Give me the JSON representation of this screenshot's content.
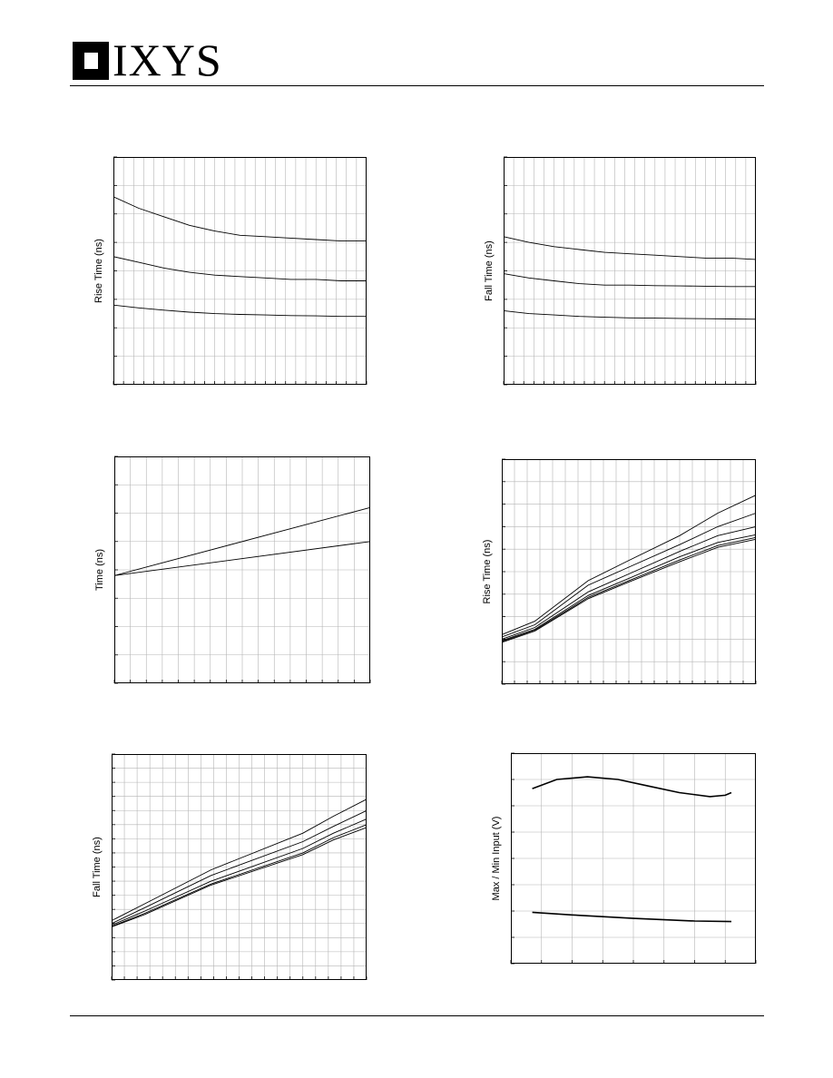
{
  "header": {
    "brand": "IXYS"
  },
  "chart_data": [
    {
      "type": "line",
      "ylabel": "Rise Time (ns)",
      "xlim": [
        0,
        10
      ],
      "ylim": [
        0,
        8
      ],
      "grid": {
        "x": 25,
        "y": 8
      },
      "series": [
        {
          "x": [
            0,
            1,
            2,
            3,
            4,
            5,
            6,
            7,
            8,
            9,
            10
          ],
          "values": [
            6.6,
            6.2,
            5.9,
            5.6,
            5.4,
            5.25,
            5.2,
            5.15,
            5.1,
            5.05,
            5.05
          ]
        },
        {
          "x": [
            0,
            1,
            2,
            3,
            4,
            5,
            6,
            7,
            8,
            9,
            10
          ],
          "values": [
            4.5,
            4.3,
            4.1,
            3.95,
            3.85,
            3.8,
            3.75,
            3.7,
            3.7,
            3.65,
            3.65
          ]
        },
        {
          "x": [
            0,
            1,
            2,
            3,
            4,
            5,
            6,
            7,
            8,
            9,
            10
          ],
          "values": [
            2.8,
            2.7,
            2.62,
            2.55,
            2.5,
            2.47,
            2.45,
            2.43,
            2.42,
            2.4,
            2.4
          ]
        }
      ]
    },
    {
      "type": "line",
      "ylabel": "Fall Time (ns)",
      "xlim": [
        0,
        10
      ],
      "ylim": [
        0,
        8
      ],
      "grid": {
        "x": 25,
        "y": 8
      },
      "series": [
        {
          "x": [
            0,
            1,
            2,
            3,
            4,
            5,
            6,
            7,
            8,
            9,
            10
          ],
          "values": [
            5.2,
            5.0,
            4.85,
            4.75,
            4.65,
            4.6,
            4.55,
            4.5,
            4.45,
            4.45,
            4.4
          ]
        },
        {
          "x": [
            0,
            1,
            2,
            3,
            4,
            5,
            6,
            7,
            8,
            9,
            10
          ],
          "values": [
            3.9,
            3.75,
            3.65,
            3.55,
            3.5,
            3.5,
            3.48,
            3.47,
            3.46,
            3.45,
            3.45
          ]
        },
        {
          "x": [
            0,
            1,
            2,
            3,
            4,
            5,
            6,
            7,
            8,
            9,
            10
          ],
          "values": [
            2.6,
            2.5,
            2.45,
            2.4,
            2.37,
            2.35,
            2.34,
            2.33,
            2.32,
            2.31,
            2.3
          ]
        }
      ]
    },
    {
      "type": "line",
      "ylabel": "Time (ns)",
      "xlim": [
        0,
        8
      ],
      "ylim": [
        0,
        8
      ],
      "grid": {
        "x": 16,
        "y": 8
      },
      "series": [
        {
          "x": [
            0,
            8
          ],
          "values": [
            3.8,
            6.2
          ]
        },
        {
          "x": [
            0,
            8
          ],
          "values": [
            3.8,
            5.0
          ]
        }
      ]
    },
    {
      "type": "line",
      "ylabel": "Rise Time (ns)",
      "xlim": [
        0,
        10
      ],
      "ylim": [
        0,
        5
      ],
      "grid": {
        "x": 20,
        "y": 10
      },
      "series": [
        {
          "x": [
            0,
            1.3,
            3.4,
            5,
            7,
            8.5,
            10
          ],
          "values": [
            1.1,
            1.4,
            2.3,
            2.75,
            3.3,
            3.8,
            4.2
          ]
        },
        {
          "x": [
            0,
            1.3,
            3.4,
            5,
            7,
            8.5,
            10
          ],
          "values": [
            1.05,
            1.32,
            2.2,
            2.6,
            3.1,
            3.5,
            3.8
          ]
        },
        {
          "x": [
            0,
            1.3,
            3.4,
            5,
            7,
            8.5,
            10
          ],
          "values": [
            1.0,
            1.26,
            2.05,
            2.45,
            2.95,
            3.3,
            3.5
          ]
        },
        {
          "x": [
            0,
            1.3,
            3.4,
            5,
            7,
            8.5,
            10
          ],
          "values": [
            0.97,
            1.22,
            1.97,
            2.35,
            2.83,
            3.15,
            3.32
          ]
        },
        {
          "x": [
            0,
            1.3,
            3.4,
            5,
            7,
            8.5,
            10
          ],
          "values": [
            0.95,
            1.2,
            1.93,
            2.3,
            2.76,
            3.08,
            3.26
          ]
        },
        {
          "x": [
            0,
            1.3,
            3.4,
            5,
            7,
            8.5,
            10
          ],
          "values": [
            0.93,
            1.18,
            1.9,
            2.27,
            2.72,
            3.04,
            3.22
          ]
        }
      ]
    },
    {
      "type": "line",
      "ylabel": "Fall Time (ns)",
      "xlim": [
        0,
        10
      ],
      "ylim": [
        0,
        4
      ],
      "grid": {
        "x": 20,
        "y": 16
      },
      "series": [
        {
          "x": [
            0,
            1.3,
            3.9,
            7.5,
            8.7,
            10
          ],
          "values": [
            1.05,
            1.35,
            1.95,
            2.6,
            2.9,
            3.2
          ]
        },
        {
          "x": [
            0,
            1.3,
            3.9,
            7.5,
            8.7,
            10
          ],
          "values": [
            1.0,
            1.28,
            1.85,
            2.45,
            2.72,
            3.0
          ]
        },
        {
          "x": [
            0,
            1.3,
            3.9,
            7.5,
            8.7,
            10
          ],
          "values": [
            0.97,
            1.22,
            1.75,
            2.33,
            2.6,
            2.85
          ]
        },
        {
          "x": [
            0,
            1.3,
            3.9,
            7.5,
            8.7,
            10
          ],
          "values": [
            0.95,
            1.18,
            1.7,
            2.25,
            2.52,
            2.75
          ]
        },
        {
          "x": [
            0,
            1.3,
            3.9,
            7.5,
            8.7,
            10
          ],
          "values": [
            0.94,
            1.16,
            1.68,
            2.22,
            2.48,
            2.7
          ]
        }
      ]
    },
    {
      "type": "line",
      "ylabel": "Max / Min Input (V)",
      "xlim": [
        0,
        8
      ],
      "ylim": [
        0,
        8
      ],
      "grid": {
        "x": 8,
        "y": 8
      },
      "series": [
        {
          "x": [
            0.7,
            1.5,
            2.5,
            3.5,
            4.5,
            5.5,
            6.5,
            7.0,
            7.2
          ],
          "values": [
            6.65,
            7.0,
            7.1,
            7.0,
            6.75,
            6.5,
            6.35,
            6.4,
            6.5
          ]
        },
        {
          "x": [
            0.7,
            2,
            4,
            6,
            7.2
          ],
          "values": [
            1.95,
            1.85,
            1.72,
            1.62,
            1.6
          ]
        }
      ]
    }
  ]
}
